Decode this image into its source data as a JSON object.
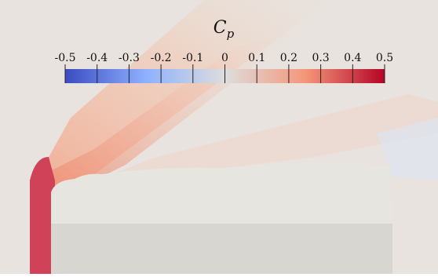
{
  "colorbar": {
    "title": "C",
    "title_subscript": "p",
    "lim": [
      -0.5,
      0.5
    ],
    "ticks": [
      -0.5,
      -0.4,
      -0.3,
      -0.2,
      -0.1,
      0,
      0.1,
      0.2,
      0.3,
      0.4,
      0.5
    ],
    "colormap": [
      "#3b4cc0",
      "#8db0fe",
      "#dddddd",
      "#f4987a",
      "#b40426"
    ]
  }
}
